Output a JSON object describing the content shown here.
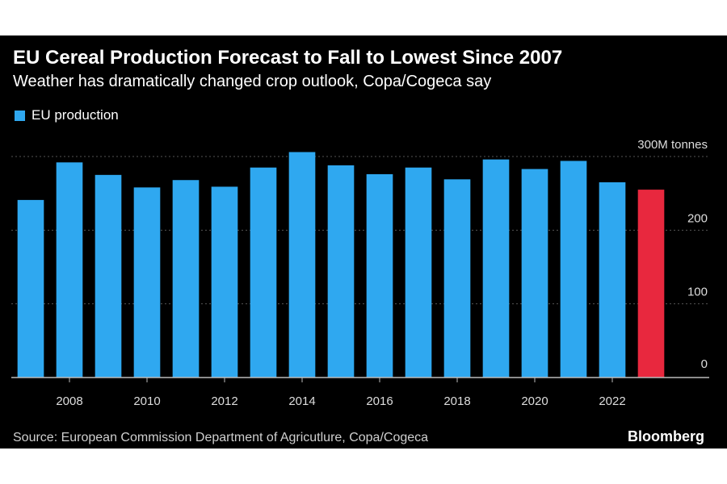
{
  "header": {
    "title": "EU Cereal Production Forecast to Fall to Lowest Since 2007",
    "subtitle": "Weather has dramatically changed crop outlook, Copa/Cogeca say"
  },
  "legend": {
    "label": "EU production"
  },
  "footer": {
    "source": "Source: European Commission Department of Agricutlure, Copa/Cogeca",
    "brand": "Bloomberg"
  },
  "colors": {
    "background": "#000000",
    "bar": "#2fa8f0",
    "forecast_bar": "#e8283e",
    "grid": "#555555",
    "text": "#ffffff",
    "axis_text": "#dddddd"
  },
  "chart_data": {
    "type": "bar",
    "categories": [
      "2007",
      "2008",
      "2009",
      "2010",
      "2011",
      "2012",
      "2013",
      "2014",
      "2015",
      "2016",
      "2017",
      "2018",
      "2019",
      "2020",
      "2021",
      "2022",
      "2023"
    ],
    "series": [
      {
        "name": "EU production",
        "values": [
          241,
          292,
          275,
          258,
          268,
          259,
          285,
          306,
          288,
          276,
          285,
          269,
          296,
          283,
          294,
          265,
          255
        ]
      }
    ],
    "highlight_index": 16,
    "xticks": [
      "2008",
      "2010",
      "2012",
      "2014",
      "2016",
      "2018",
      "2020",
      "2022"
    ],
    "yticks": [
      {
        "value": 0,
        "label": "0"
      },
      {
        "value": 100,
        "label": "100"
      },
      {
        "value": 200,
        "label": "200"
      },
      {
        "value": 300,
        "label": "300M tonnes"
      }
    ],
    "ylim": [
      0,
      300
    ],
    "grid": true,
    "legend_position": "top-left"
  }
}
